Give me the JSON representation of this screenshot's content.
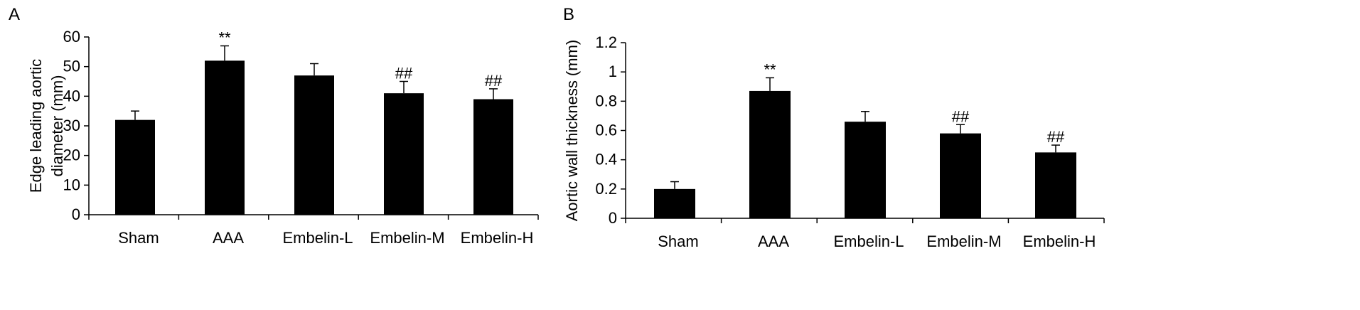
{
  "colors": {
    "bar": "#000000",
    "axis": "#000000",
    "background": "#ffffff"
  },
  "chart_data": [
    {
      "panel": "A",
      "type": "bar",
      "categories": [
        "Sham",
        "AAA",
        "Embelin-L",
        "Embelin-M",
        "Embelin-H"
      ],
      "values": [
        32,
        52,
        47,
        41,
        39
      ],
      "errors": [
        3,
        5,
        4,
        4,
        3.5
      ],
      "annotations": [
        "",
        "**",
        "",
        "##",
        "##"
      ],
      "ylabel": [
        "Edge leading aortic",
        "diameter (mm)"
      ],
      "ylim": [
        0,
        60
      ],
      "yticks": [
        0,
        10,
        20,
        30,
        40,
        50,
        60
      ],
      "ytick_labels": [
        "0",
        "10",
        "20",
        "30",
        "40",
        "50",
        "60"
      ],
      "grid": false,
      "legend": "none"
    },
    {
      "panel": "B",
      "type": "bar",
      "categories": [
        "Sham",
        "AAA",
        "Embelin-L",
        "Embelin-M",
        "Embelin-H"
      ],
      "values": [
        0.2,
        0.87,
        0.66,
        0.58,
        0.45
      ],
      "errors": [
        0.05,
        0.09,
        0.07,
        0.06,
        0.05
      ],
      "annotations": [
        "",
        "**",
        "",
        "##",
        "##"
      ],
      "ylabel": [
        "Aortic wall thickness (mm)"
      ],
      "ylim": [
        0,
        1.2
      ],
      "yticks": [
        0,
        0.2,
        0.4,
        0.6,
        0.8,
        1.0,
        1.2
      ],
      "ytick_labels": [
        "0",
        "0.2",
        "0.4",
        "0.6",
        "0.8",
        "1",
        "1.2"
      ],
      "grid": false,
      "legend": "none"
    }
  ]
}
